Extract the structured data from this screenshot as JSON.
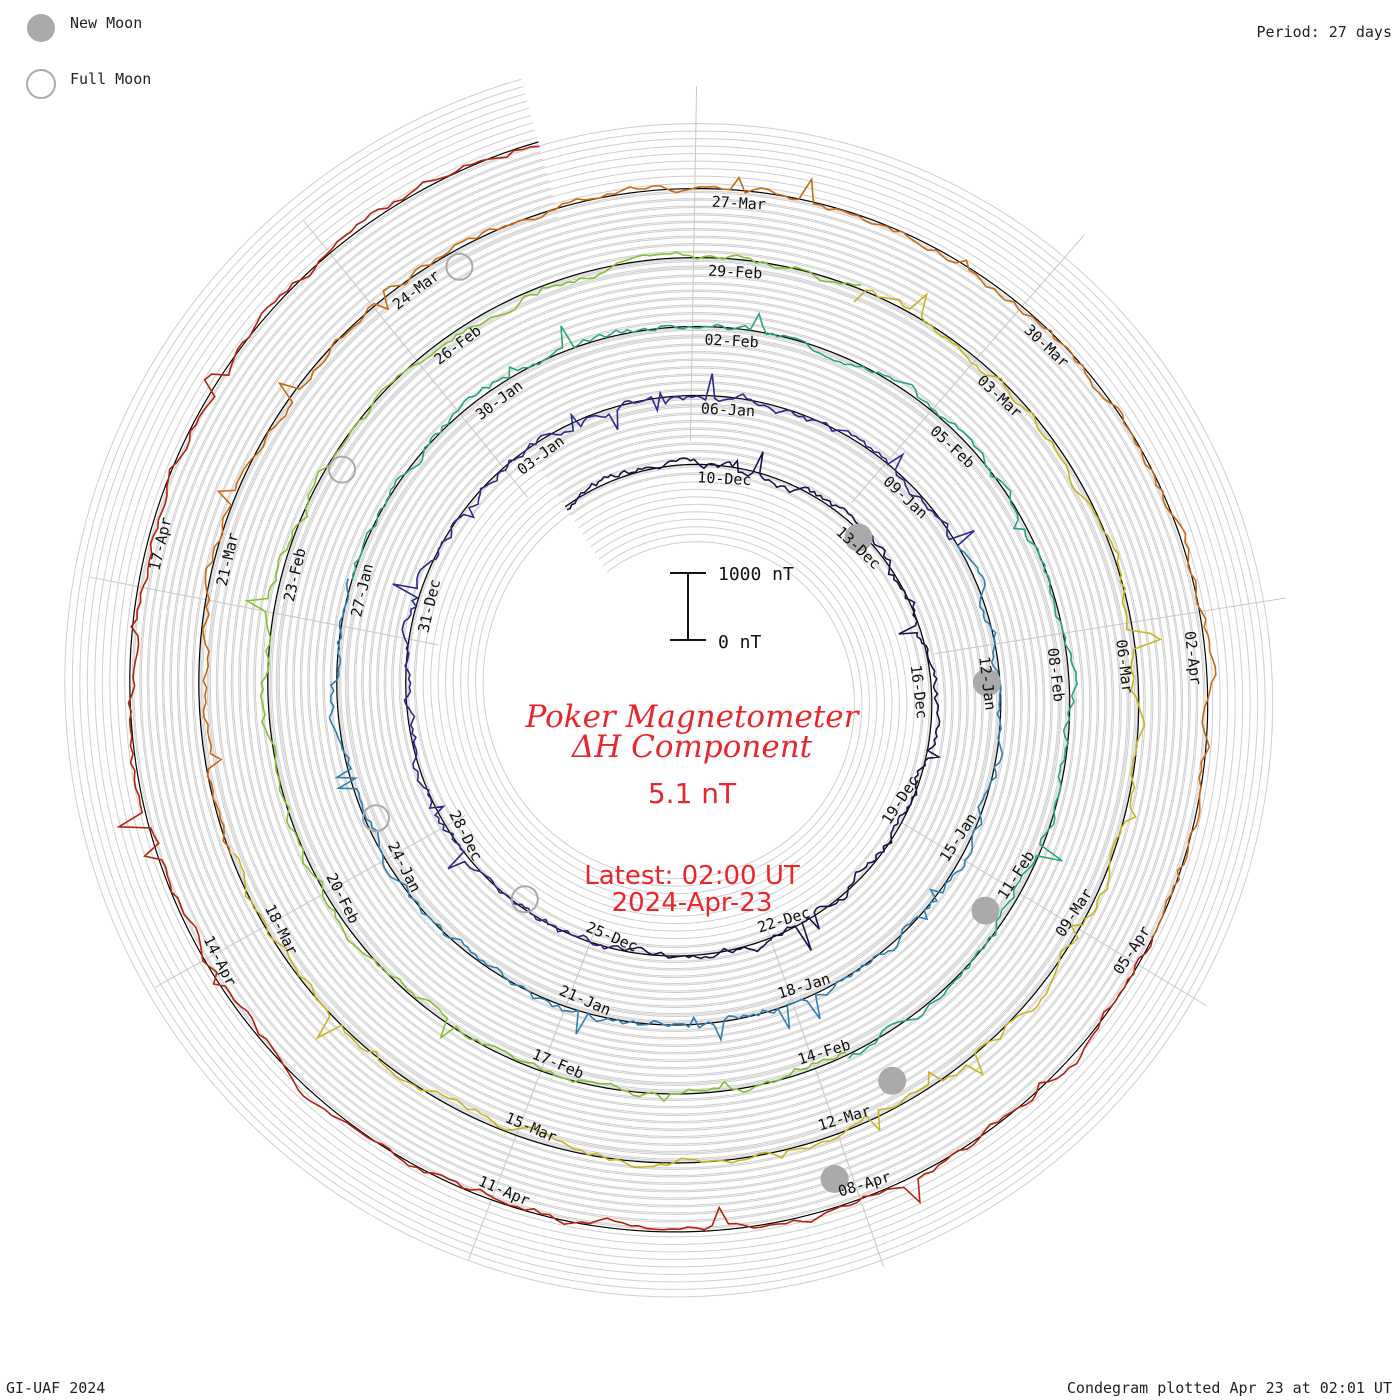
{
  "chart_data": {
    "type": "line",
    "title": "Poker Magnetometer",
    "subtitle": "ΔH Component",
    "current_value": "5.1 nT",
    "latest_time": "Latest: 02:00 UT",
    "latest_date": "2024-Apr-23",
    "period": "Period: 27 days",
    "scale_bar": {
      "top_label": "1000 nT",
      "bottom_label": "0 nT"
    },
    "colors": {
      "title": "#e8262b",
      "rings": [
        "#20104a",
        "#2a2a8c",
        "#2f7fb0",
        "#27a86e",
        "#88c034",
        "#c8b420",
        "#c96a12",
        "#b8200e"
      ]
    },
    "rings": [
      {
        "start": "10-Dec",
        "labels": [
          "10-Dec",
          "13-Dec",
          "16-Dec",
          "19-Dec",
          "22-Dec",
          "25-Dec",
          "28-Dec",
          "31-Dec",
          "03-Jan"
        ]
      },
      {
        "start": "06-Jan",
        "labels": [
          "06-Jan",
          "09-Jan",
          "12-Jan",
          "15-Jan",
          "18-Jan",
          "21-Jan",
          "24-Jan",
          "27-Jan",
          "30-Jan"
        ]
      },
      {
        "start": "02-Feb",
        "labels": [
          "02-Feb",
          "05-Feb",
          "08-Feb",
          "11-Feb",
          "14-Feb",
          "17-Feb",
          "20-Feb",
          "23-Feb",
          "26-Feb"
        ]
      },
      {
        "start": "29-Feb",
        "labels": [
          "29-Feb",
          "03-Mar",
          "06-Mar",
          "09-Mar",
          "12-Mar",
          "15-Mar",
          "18-Mar",
          "21-Mar",
          "24-Mar"
        ]
      },
      {
        "start": "27-Mar",
        "labels": [
          "27-Mar",
          "30-Mar",
          "02-Apr",
          "05-Apr",
          "08-Apr",
          "11-Apr",
          "14-Apr",
          "17-Apr"
        ]
      }
    ],
    "new_moon_dates": [
      "12-Dec",
      "11-Jan",
      "09-Feb",
      "10-Mar",
      "08-Apr"
    ],
    "full_moon_dates": [
      "27-Dec",
      "25-Jan",
      "24-Feb",
      "25-Mar"
    ],
    "legend": {
      "new_moon": "New Moon",
      "full_moon": "Full Moon"
    },
    "footer_left": "GI-UAF 2024",
    "footer_right": "Condegram plotted Apr 23 at 02:01 UT"
  }
}
